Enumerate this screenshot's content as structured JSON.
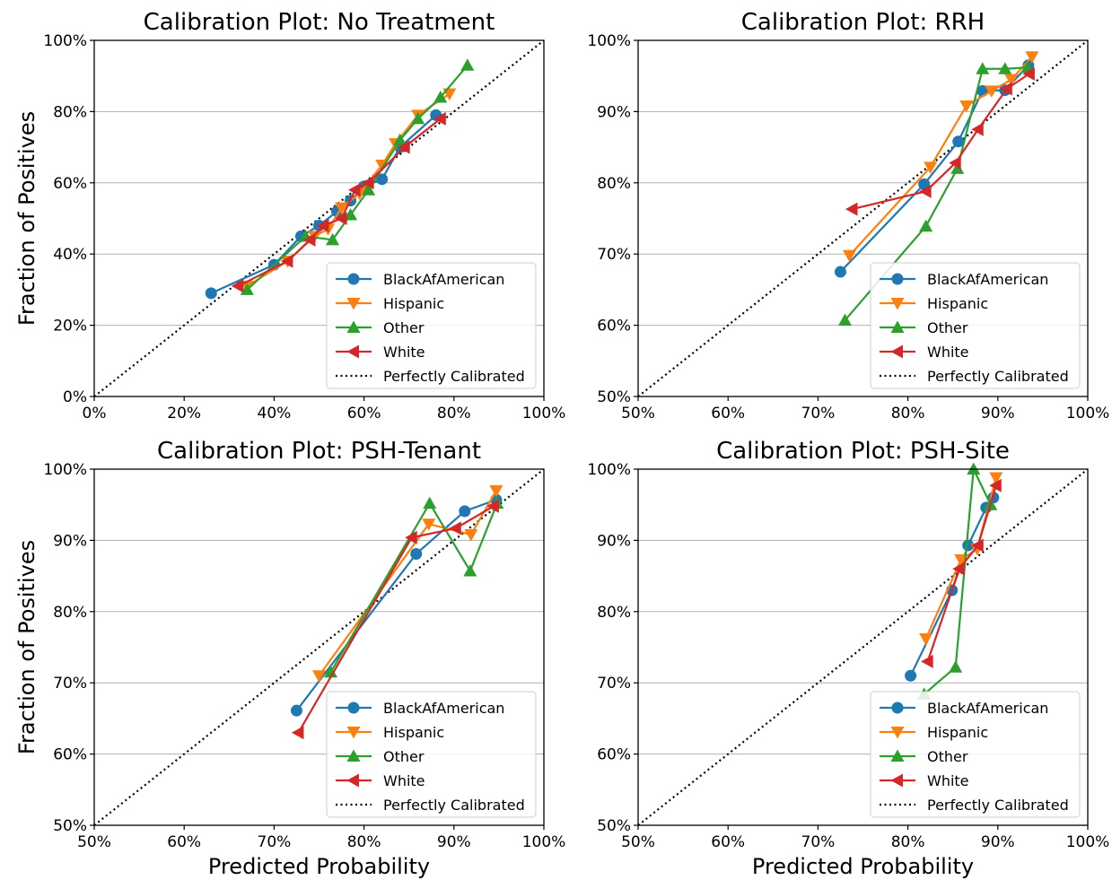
{
  "chart_data": [
    {
      "type": "line",
      "title": "Calibration Plot: No Treatment",
      "xlabel": "",
      "ylabel": "Fraction of Positives",
      "xlim": [
        0,
        1
      ],
      "ylim": [
        0,
        1
      ],
      "xticks": [
        "0%",
        "20%",
        "40%",
        "60%",
        "80%",
        "100%"
      ],
      "yticks": [
        "0%",
        "20%",
        "40%",
        "60%",
        "80%",
        "100%"
      ],
      "grid": "horizontal",
      "legend_position": "lower-right",
      "series": [
        {
          "name": "BlackAfAmerican",
          "color": "#1f77b4",
          "marker": "circle",
          "x": [
            0.26,
            0.4,
            0.46,
            0.5,
            0.54,
            0.57,
            0.6,
            0.64,
            0.68,
            0.76
          ],
          "y": [
            0.29,
            0.37,
            0.45,
            0.48,
            0.52,
            0.55,
            0.59,
            0.61,
            0.7,
            0.79
          ]
        },
        {
          "name": "Hispanic",
          "color": "#ff7f0e",
          "marker": "triangle-down",
          "x": [
            0.34,
            0.43,
            0.49,
            0.52,
            0.55,
            0.59,
            0.64,
            0.67,
            0.72,
            0.79
          ],
          "y": [
            0.31,
            0.38,
            0.45,
            0.47,
            0.53,
            0.57,
            0.65,
            0.71,
            0.79,
            0.85
          ]
        },
        {
          "name": "Other",
          "color": "#2ca02c",
          "marker": "triangle-up",
          "x": [
            0.34,
            0.47,
            0.53,
            0.57,
            0.61,
            0.68,
            0.72,
            0.77,
            0.83
          ],
          "y": [
            0.3,
            0.45,
            0.44,
            0.51,
            0.58,
            0.72,
            0.78,
            0.84,
            0.93
          ]
        },
        {
          "name": "White",
          "color": "#d62728",
          "marker": "triangle-left",
          "x": [
            0.32,
            0.43,
            0.48,
            0.51,
            0.55,
            0.58,
            0.61,
            0.69,
            0.77
          ],
          "y": [
            0.31,
            0.38,
            0.44,
            0.48,
            0.5,
            0.58,
            0.6,
            0.7,
            0.78
          ]
        }
      ],
      "reference": {
        "name": "Perfectly Calibrated",
        "style": "dotted",
        "color": "#000000"
      }
    },
    {
      "type": "line",
      "title": "Calibration Plot: RRH",
      "xlabel": "",
      "ylabel": "",
      "xlim": [
        0.5,
        1
      ],
      "ylim": [
        0.5,
        1
      ],
      "xticks": [
        "50%",
        "60%",
        "70%",
        "80%",
        "90%",
        "100%"
      ],
      "yticks": [
        "50%",
        "60%",
        "70%",
        "80%",
        "90%",
        "100%"
      ],
      "grid": "horizontal",
      "legend_position": "lower-right",
      "series": [
        {
          "name": "BlackAfAmerican",
          "color": "#1f77b4",
          "marker": "circle",
          "x": [
            0.725,
            0.818,
            0.856,
            0.883,
            0.908,
            0.934
          ],
          "y": [
            0.675,
            0.798,
            0.858,
            0.929,
            0.93,
            0.965
          ]
        },
        {
          "name": "Hispanic",
          "color": "#ff7f0e",
          "marker": "triangle-down",
          "x": [
            0.735,
            0.825,
            0.865,
            0.893,
            0.915,
            0.938
          ],
          "y": [
            0.698,
            0.822,
            0.908,
            0.929,
            0.945,
            0.977
          ]
        },
        {
          "name": "Other",
          "color": "#2ca02c",
          "marker": "triangle-up",
          "x": [
            0.73,
            0.82,
            0.855,
            0.883,
            0.908,
            0.933
          ],
          "y": [
            0.607,
            0.739,
            0.82,
            0.96,
            0.96,
            0.962
          ]
        },
        {
          "name": "White",
          "color": "#d62728",
          "marker": "triangle-left",
          "x": [
            0.738,
            0.82,
            0.853,
            0.878,
            0.91,
            0.935
          ],
          "y": [
            0.763,
            0.788,
            0.828,
            0.875,
            0.932,
            0.953
          ]
        }
      ],
      "reference": {
        "name": "Perfectly Calibrated",
        "style": "dotted",
        "color": "#000000"
      }
    },
    {
      "type": "line",
      "title": "Calibration Plot: PSH-Tenant",
      "xlabel": "Predicted Probability",
      "ylabel": "Fraction of Positives",
      "xlim": [
        0.5,
        1
      ],
      "ylim": [
        0.5,
        1
      ],
      "xticks": [
        "50%",
        "60%",
        "70%",
        "80%",
        "90%",
        "100%"
      ],
      "yticks": [
        "50%",
        "60%",
        "70%",
        "80%",
        "90%",
        "100%"
      ],
      "grid": "horizontal",
      "legend_position": "lower-right",
      "series": [
        {
          "name": "BlackAfAmerican",
          "color": "#1f77b4",
          "marker": "circle",
          "x": [
            0.725,
            0.858,
            0.912,
            0.947
          ],
          "y": [
            0.661,
            0.881,
            0.941,
            0.957
          ]
        },
        {
          "name": "Hispanic",
          "color": "#ff7f0e",
          "marker": "triangle-down",
          "x": [
            0.75,
            0.872,
            0.919,
            0.947
          ],
          "y": [
            0.71,
            0.923,
            0.908,
            0.97
          ]
        },
        {
          "name": "Other",
          "color": "#2ca02c",
          "marker": "triangle-up",
          "x": [
            0.763,
            0.873,
            0.918,
            0.948
          ],
          "y": [
            0.715,
            0.952,
            0.857,
            0.952
          ]
        },
        {
          "name": "White",
          "color": "#d62728",
          "marker": "triangle-left",
          "x": [
            0.727,
            0.853,
            0.902,
            0.944
          ],
          "y": [
            0.63,
            0.904,
            0.917,
            0.948
          ]
        }
      ],
      "reference": {
        "name": "Perfectly Calibrated",
        "style": "dotted",
        "color": "#000000"
      }
    },
    {
      "type": "line",
      "title": "Calibration Plot: PSH-Site",
      "xlabel": "Predicted Probability",
      "ylabel": "",
      "xlim": [
        0.5,
        1
      ],
      "ylim": [
        0.5,
        1
      ],
      "xticks": [
        "50%",
        "60%",
        "70%",
        "80%",
        "90%",
        "100%"
      ],
      "yticks": [
        "50%",
        "60%",
        "70%",
        "80%",
        "90%",
        "100%"
      ],
      "grid": "horizontal",
      "legend_position": "lower-right",
      "series": [
        {
          "name": "BlackAfAmerican",
          "color": "#1f77b4",
          "marker": "circle",
          "x": [
            0.803,
            0.849,
            0.867,
            0.887,
            0.895
          ],
          "y": [
            0.71,
            0.83,
            0.893,
            0.946,
            0.96
          ]
        },
        {
          "name": "Hispanic",
          "color": "#ff7f0e",
          "marker": "triangle-down",
          "x": [
            0.82,
            0.859,
            0.877,
            0.898
          ],
          "y": [
            0.762,
            0.873,
            0.888,
            0.988
          ]
        },
        {
          "name": "Other",
          "color": "#2ca02c",
          "marker": "triangle-up",
          "x": [
            0.818,
            0.853,
            0.873,
            0.892
          ],
          "y": [
            0.684,
            0.722,
            1.0,
            0.95
          ]
        },
        {
          "name": "White",
          "color": "#d62728",
          "marker": "triangle-left",
          "x": [
            0.822,
            0.857,
            0.878,
            0.898
          ],
          "y": [
            0.73,
            0.86,
            0.893,
            0.977
          ]
        }
      ],
      "reference": {
        "name": "Perfectly Calibrated",
        "style": "dotted",
        "color": "#000000"
      }
    }
  ]
}
